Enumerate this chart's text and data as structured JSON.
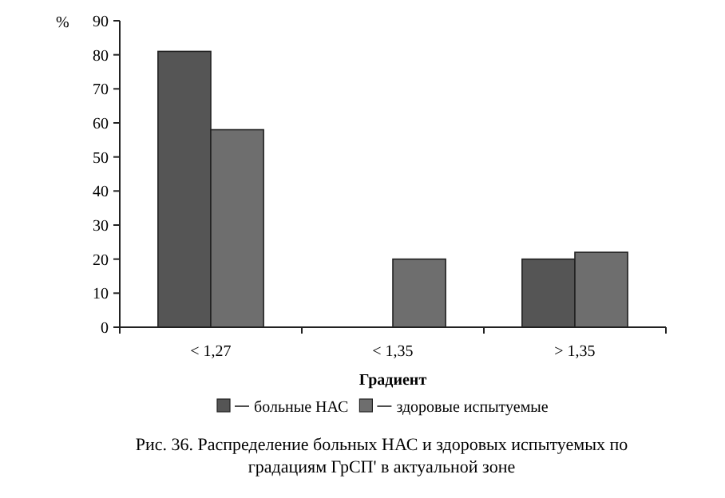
{
  "chart_data": {
    "type": "bar",
    "ylabel": "%",
    "xlabel": "Градиент",
    "categories": [
      "< 1,27",
      "< 1,35",
      "> 1,35"
    ],
    "series": [
      {
        "name": "больные НАС",
        "color": "#555555",
        "values": [
          81,
          0,
          20
        ]
      },
      {
        "name": "здоровые испытуемые",
        "color": "#6e6e6e",
        "values": [
          58,
          20,
          22
        ]
      }
    ],
    "ylim": [
      0,
      90
    ],
    "yticks": [
      0,
      10,
      20,
      30,
      40,
      50,
      60,
      70,
      80,
      90
    ],
    "legend": "bottom",
    "annotations": [
      "Рис. 36. Распределение больных НАС и здоровых испытуемых по градациям ГрСП' в актуальной зоне"
    ]
  }
}
